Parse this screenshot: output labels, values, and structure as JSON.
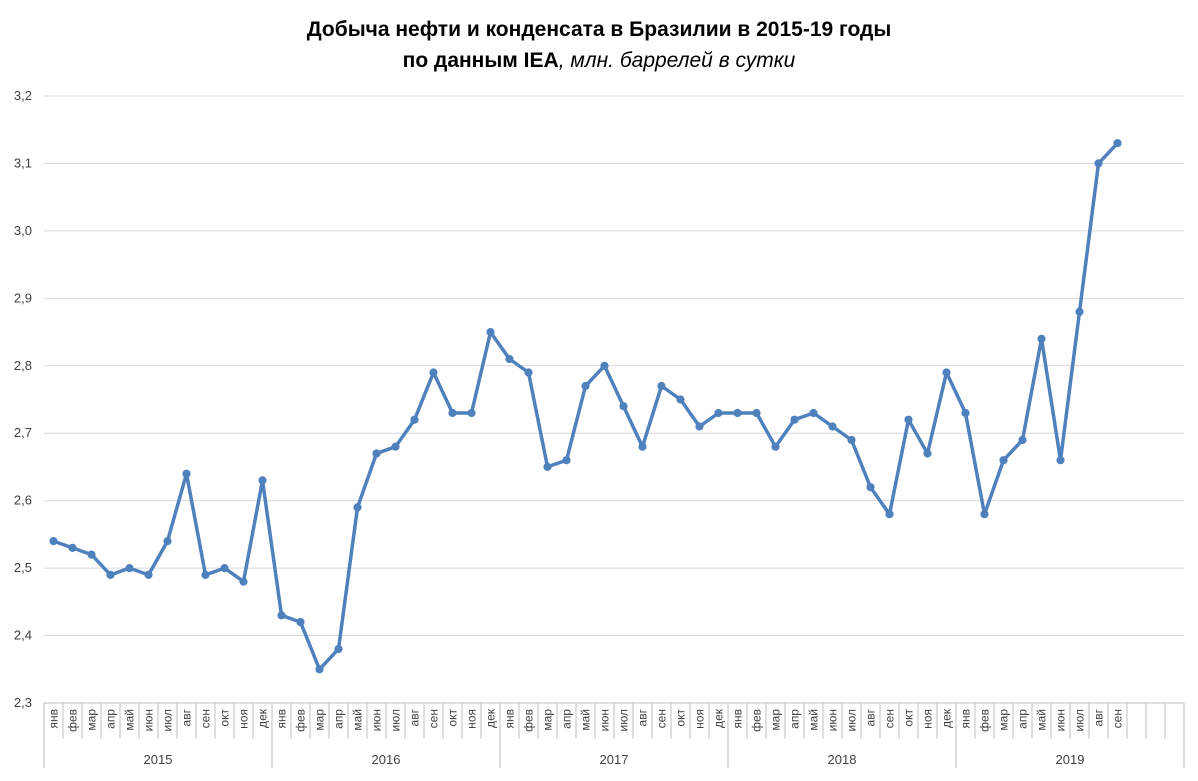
{
  "chart_data": {
    "type": "line",
    "title": "Добыча нефти и конденсата в Бразилии в 2015-19 годы",
    "subtitle": "по данным IEA",
    "subtitle_unit": ", млн. баррелей в сутки",
    "xlabel": "",
    "ylabel": "",
    "ylim": [
      2.3,
      3.2
    ],
    "y_ticks": [
      "2,3",
      "2,4",
      "2,5",
      "2,6",
      "2,7",
      "2,8",
      "2,9",
      "3,0",
      "3,1",
      "3,2"
    ],
    "grid": "horizontal",
    "legend": "none",
    "colors": {
      "series": "#4f81bd",
      "grid": "#d9d9d9",
      "axis": "#bfbfbf"
    },
    "years": [
      {
        "label": "2015",
        "months": 12
      },
      {
        "label": "2016",
        "months": 12
      },
      {
        "label": "2017",
        "months": 12
      },
      {
        "label": "2018",
        "months": 12
      },
      {
        "label": "2019",
        "months": 9
      }
    ],
    "categories": [
      "янв",
      "фев",
      "мар",
      "апр",
      "май",
      "июн",
      "июл",
      "авг",
      "сен",
      "окт",
      "ноя",
      "дек",
      "янв",
      "фев",
      "мар",
      "апр",
      "май",
      "июн",
      "июл",
      "авг",
      "сен",
      "окт",
      "ноя",
      "дек",
      "янв",
      "фев",
      "мар",
      "апр",
      "май",
      "июн",
      "июл",
      "авг",
      "сен",
      "окт",
      "ноя",
      "дек",
      "янв",
      "фев",
      "мар",
      "апр",
      "май",
      "июн",
      "июл",
      "авг",
      "сен",
      "окт",
      "ноя",
      "дек",
      "янв",
      "фев",
      "мар",
      "апр",
      "май",
      "июн",
      "июл",
      "авг",
      "сен"
    ],
    "series": [
      {
        "values": [
          2.54,
          2.53,
          2.52,
          2.49,
          2.5,
          2.49,
          2.54,
          2.64,
          2.49,
          2.5,
          2.48,
          2.63,
          2.43,
          2.42,
          2.35,
          2.38,
          2.59,
          2.67,
          2.68,
          2.72,
          2.79,
          2.73,
          2.73,
          2.85,
          2.81,
          2.79,
          2.65,
          2.66,
          2.77,
          2.8,
          2.74,
          2.68,
          2.77,
          2.75,
          2.71,
          2.73,
          2.73,
          2.73,
          2.68,
          2.72,
          2.73,
          2.71,
          2.69,
          2.62,
          2.58,
          2.72,
          2.67,
          2.79,
          2.73,
          2.58,
          2.66,
          2.69,
          2.84,
          2.66,
          2.88,
          3.1,
          3.13
        ]
      }
    ]
  }
}
